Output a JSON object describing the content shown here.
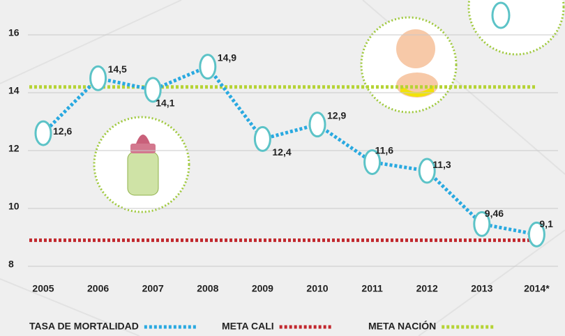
{
  "chart_data": {
    "type": "line",
    "categories": [
      "2005",
      "2006",
      "2007",
      "2008",
      "2009",
      "2010",
      "2011",
      "2012",
      "2013",
      "2014*"
    ],
    "series": [
      {
        "name": "TASA DE MORTALIDAD",
        "color": "#29a9e0",
        "values": [
          12.6,
          14.5,
          14.1,
          14.9,
          12.4,
          12.9,
          11.6,
          11.3,
          9.46,
          9.1
        ],
        "value_labels": [
          "12,6",
          "14,5",
          "14,1",
          "14,9",
          "12,4",
          "12,9",
          "11,6",
          "11,3",
          "9,46",
          "9,1"
        ]
      }
    ],
    "targets": [
      {
        "name": "META CALI",
        "color": "#c1272d",
        "value": 8.9
      },
      {
        "name": "META NACIÓN",
        "color": "#b5d334",
        "value": 14.2
      }
    ],
    "ylim": [
      8,
      16
    ],
    "yticks": [
      8,
      10,
      12,
      14,
      16
    ],
    "grid": true
  }
}
